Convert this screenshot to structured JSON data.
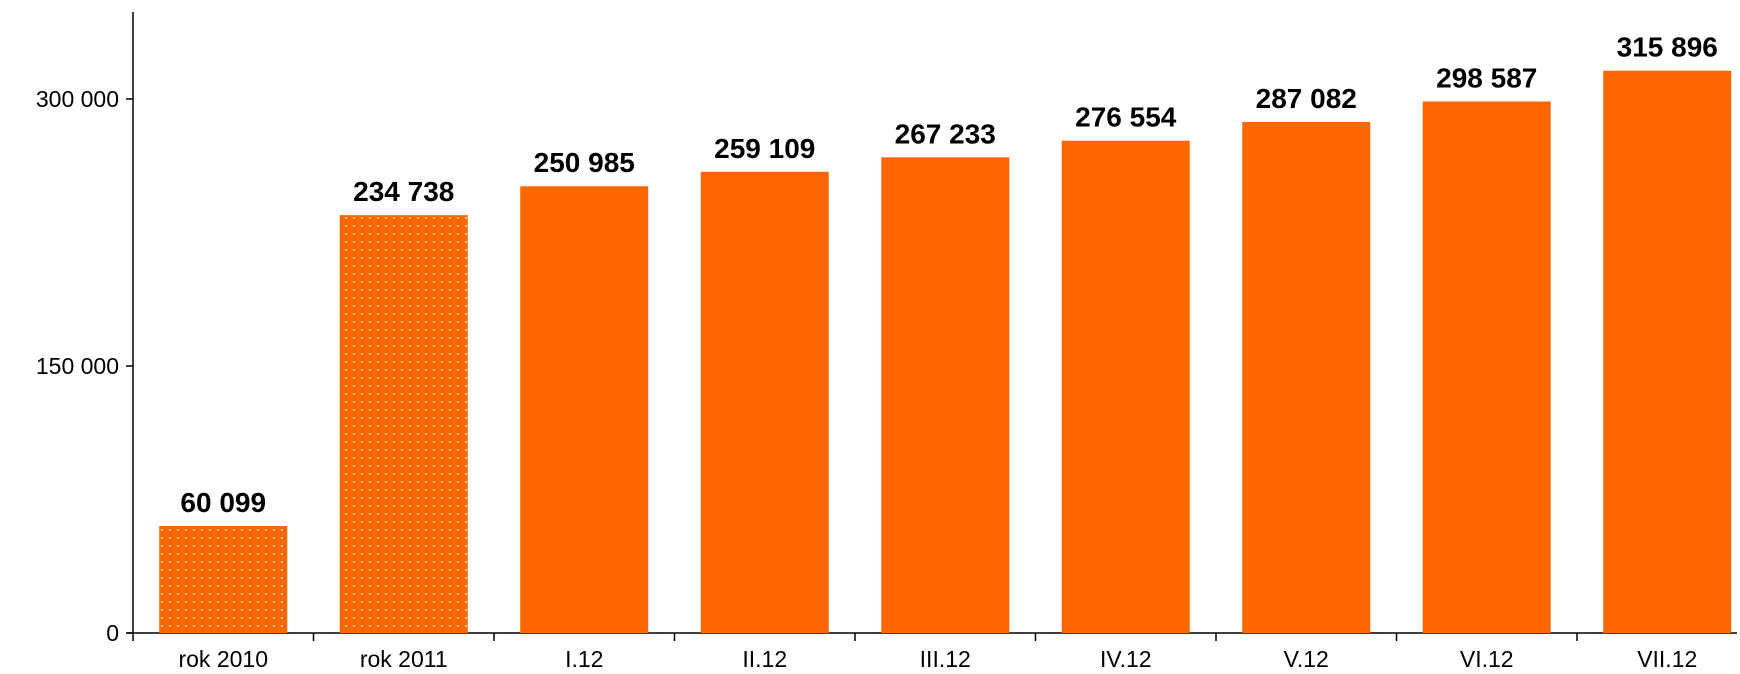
{
  "chart_data": {
    "type": "bar",
    "categories": [
      "rok 2010",
      "rok 2011",
      "I.12",
      "II.12",
      "III.12",
      "IV.12",
      "V.12",
      "VI.12",
      "VII.12"
    ],
    "values": [
      60099,
      234738,
      250985,
      259109,
      267233,
      276554,
      287082,
      298587,
      315896
    ],
    "value_labels": [
      "60 099",
      "234 738",
      "250 985",
      "259 109",
      "267 233",
      "276 554",
      "287 082",
      "298 587",
      "315 896"
    ],
    "bar_fill": [
      "dotted",
      "dotted",
      "solid",
      "solid",
      "solid",
      "solid",
      "solid",
      "solid",
      "solid"
    ],
    "yticks": [
      0,
      150000,
      300000
    ],
    "ytick_labels": [
      "0",
      "150 000",
      "300 000"
    ],
    "ylim": [
      0,
      350000
    ],
    "title": "",
    "xlabel": "",
    "ylabel": "",
    "grid": false,
    "legend": "none",
    "colors": {
      "bar": "#FF6600",
      "dots": "#FFD2B0",
      "axis": "#000000",
      "text": "#000000"
    }
  }
}
